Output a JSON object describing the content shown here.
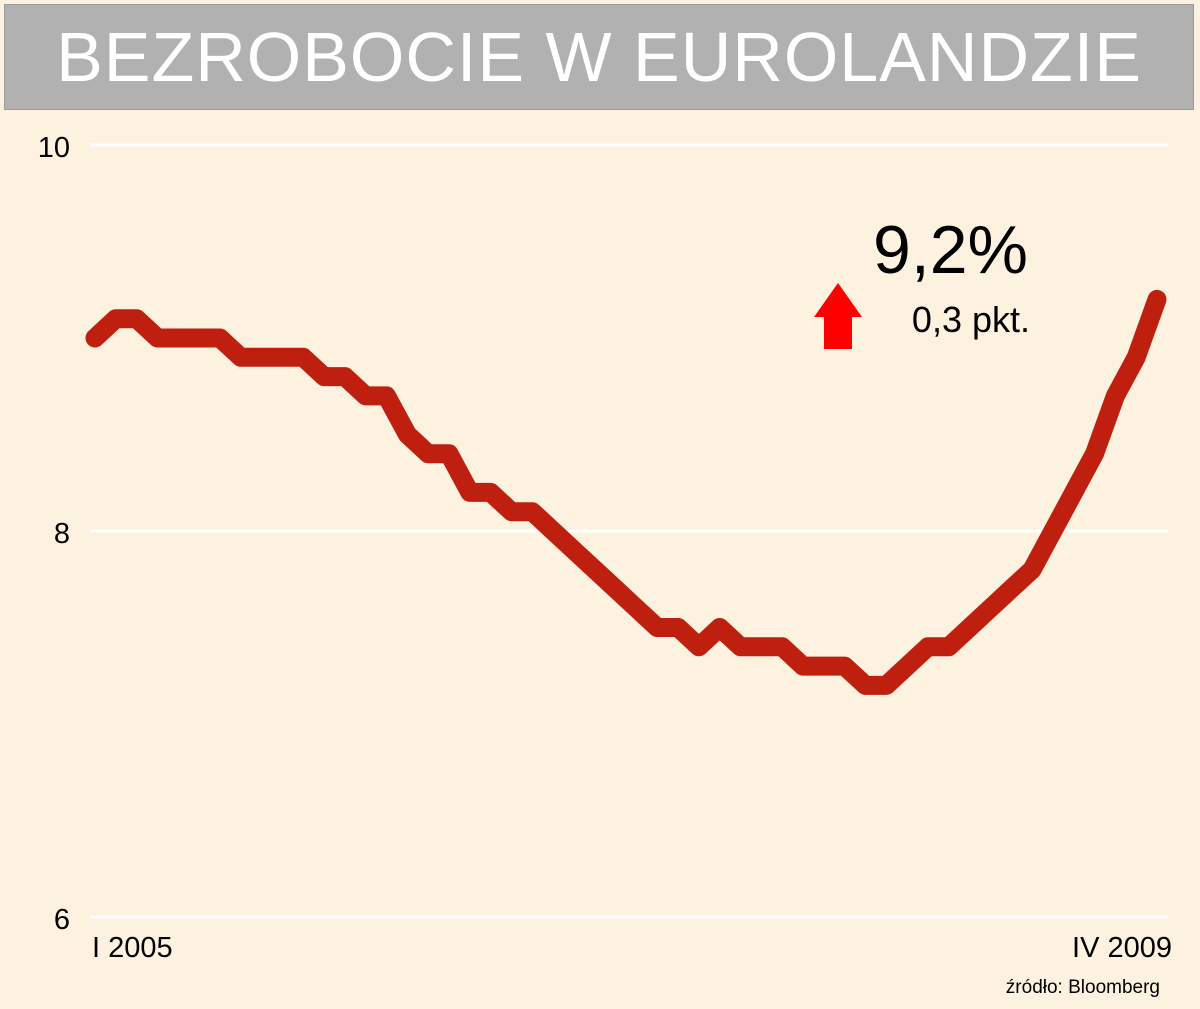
{
  "chart_data": {
    "type": "line",
    "title": "BEZROBOCIE W EUROLANDZIE",
    "x_start_label": "I 2005",
    "x_end_label": "IV 2009",
    "yticks": [
      6,
      8,
      10
    ],
    "ylim": [
      6,
      10
    ],
    "grid": true,
    "series": [
      {
        "color": "#bf1f0e",
        "values": [
          9.0,
          9.1,
          9.1,
          9.0,
          9.0,
          9.0,
          9.0,
          8.9,
          8.9,
          8.9,
          8.9,
          8.8,
          8.8,
          8.7,
          8.7,
          8.5,
          8.4,
          8.4,
          8.2,
          8.2,
          8.1,
          8.1,
          8.0,
          7.9,
          7.8,
          7.7,
          7.6,
          7.5,
          7.5,
          7.4,
          7.5,
          7.4,
          7.4,
          7.4,
          7.3,
          7.3,
          7.3,
          7.2,
          7.2,
          7.3,
          7.4,
          7.4,
          7.5,
          7.6,
          7.7,
          7.8,
          8.0,
          8.2,
          8.4,
          8.7,
          8.9,
          9.2
        ]
      }
    ],
    "annotation": {
      "value": "9,2%",
      "change": "0,3 pkt.",
      "direction_color": "#ff0000"
    },
    "source": "źródło: Bloomberg"
  }
}
